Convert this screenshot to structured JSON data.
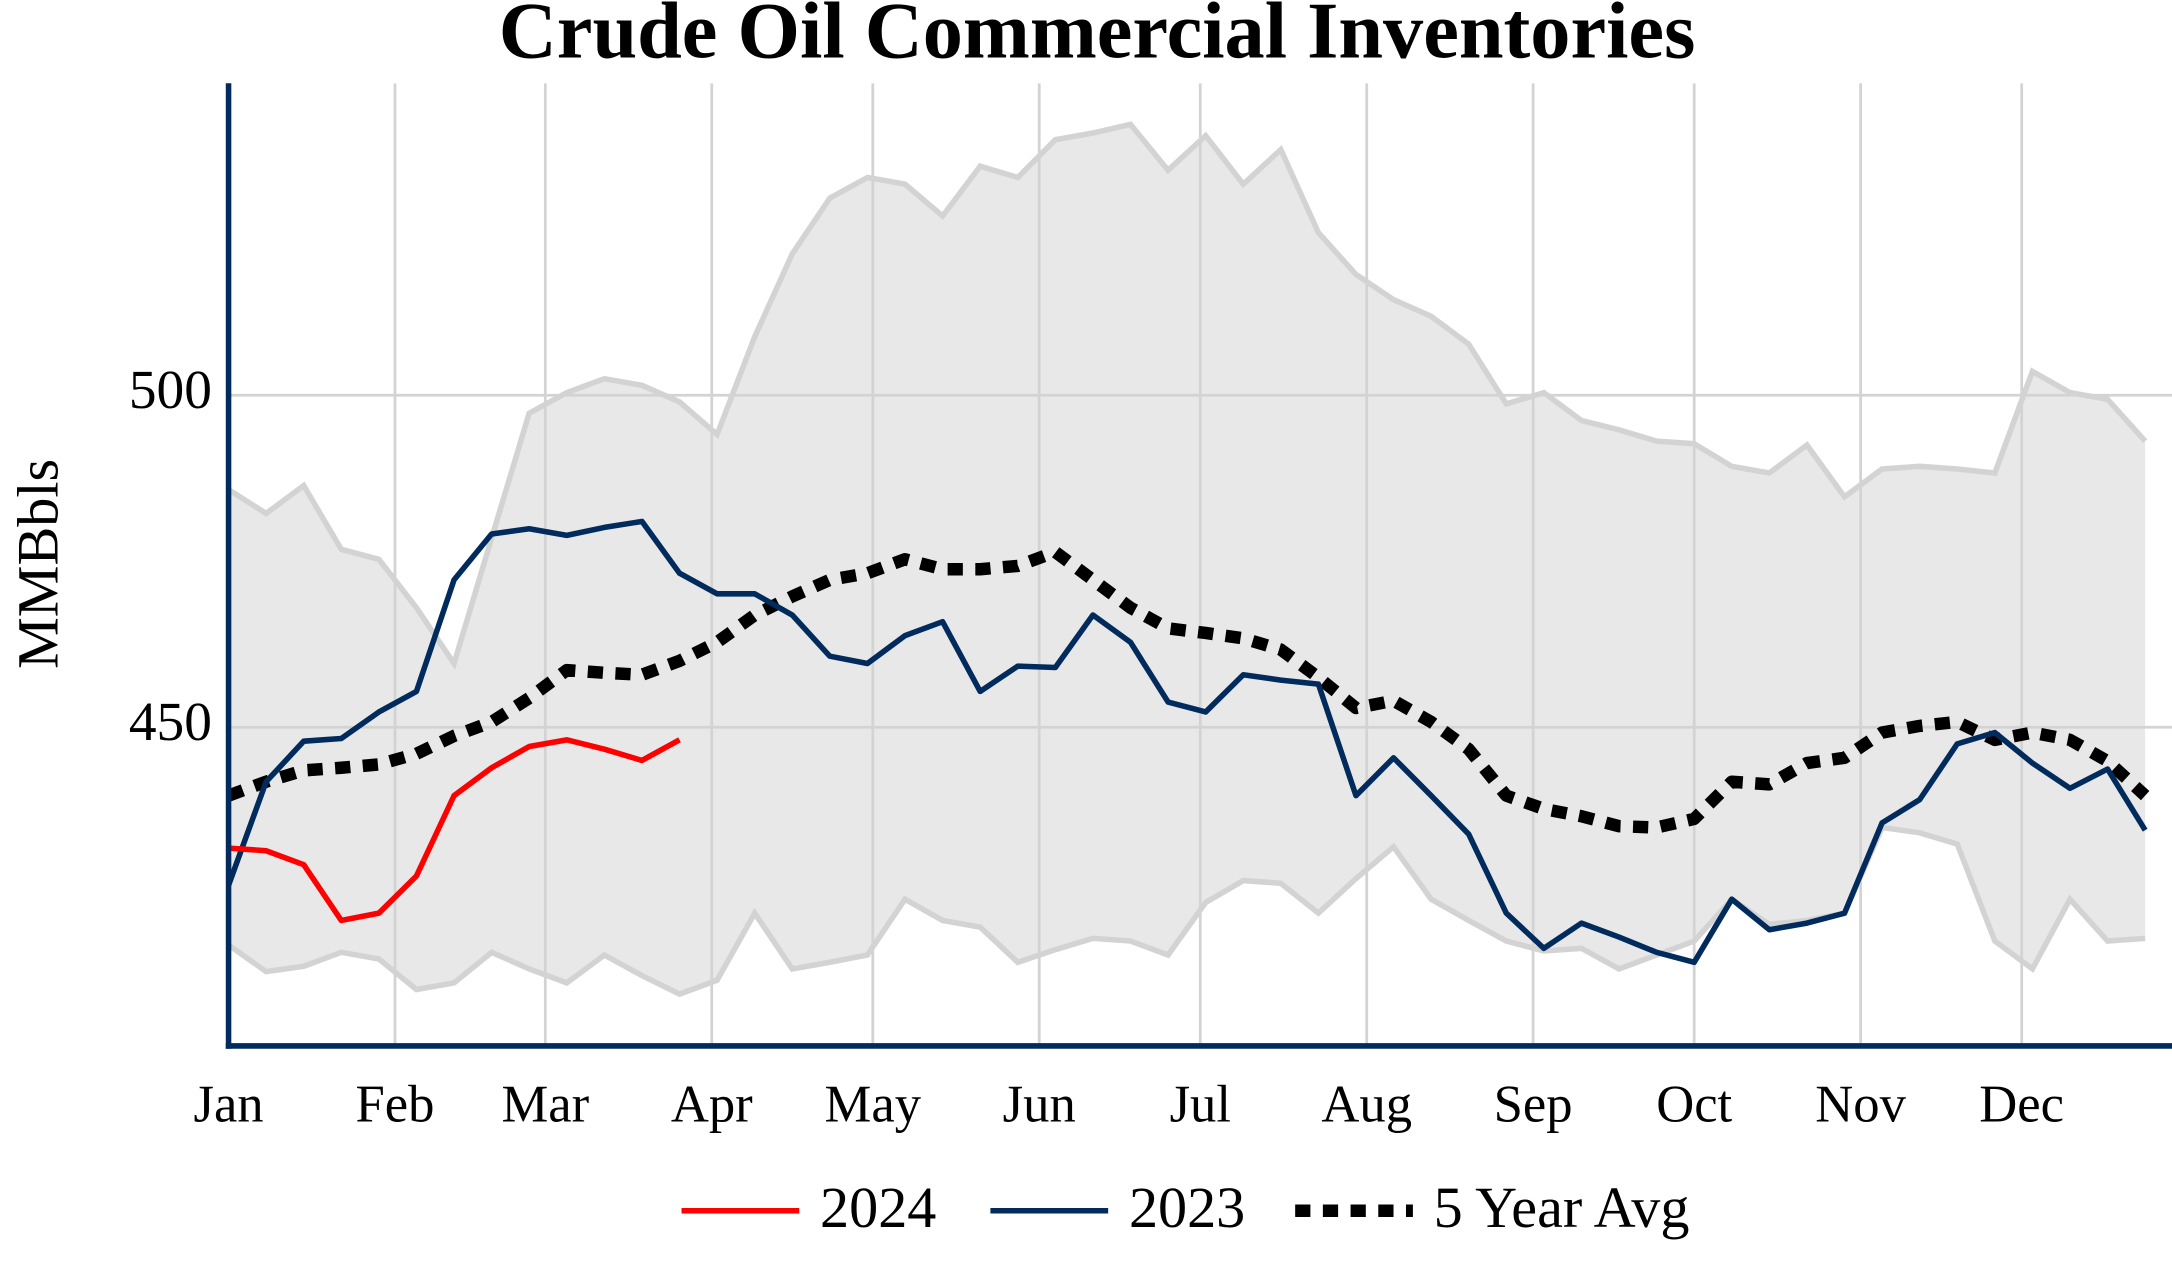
{
  "chart_data": {
    "type": "line",
    "title": "Crude Oil Commercial Inventories",
    "ylabel": "MMBbls",
    "x": [
      1,
      8,
      15,
      22,
      29,
      36,
      43,
      50,
      57,
      64,
      71,
      78,
      85,
      92,
      99,
      106,
      113,
      120,
      127,
      134,
      141,
      148,
      155,
      162,
      169,
      176,
      183,
      190,
      197,
      204,
      211,
      218,
      225,
      232,
      239,
      246,
      253,
      260,
      267,
      274,
      281,
      288,
      295,
      302,
      309,
      316,
      323,
      330,
      337,
      344,
      351,
      358
    ],
    "xlim": [
      1,
      363
    ],
    "xticks": [
      {
        "value": 1,
        "label": "Jan"
      },
      {
        "value": 32,
        "label": "Feb"
      },
      {
        "value": 60,
        "label": "Mar"
      },
      {
        "value": 91,
        "label": "Apr"
      },
      {
        "value": 121,
        "label": "May"
      },
      {
        "value": 152,
        "label": "Jun"
      },
      {
        "value": 182,
        "label": "Jul"
      },
      {
        "value": 213,
        "label": "Aug"
      },
      {
        "value": 244,
        "label": "Sep"
      },
      {
        "value": 274,
        "label": "Oct"
      },
      {
        "value": 305,
        "label": "Nov"
      },
      {
        "value": 335,
        "label": "Dec"
      }
    ],
    "ylim": [
      402,
      547
    ],
    "yticks": [
      450,
      500
    ],
    "grid": true,
    "legend": "bottom",
    "range": {
      "color": "#e8e8e8",
      "edge_color": "#d3d3d3",
      "low": [
        417.2,
        413.2,
        414,
        416.1,
        415.1,
        410.5,
        411.5,
        416.1,
        413.6,
        411.5,
        415.7,
        412.6,
        409.8,
        411.9,
        422,
        413.6,
        414.6,
        415.7,
        424.1,
        420.9,
        419.9,
        414.6,
        416.5,
        418.2,
        417.8,
        415.7,
        423.6,
        426.9,
        426.5,
        422,
        427.2,
        432,
        424.1,
        420.9,
        417.8,
        416.3,
        416.7,
        413.6,
        415.7,
        417.8,
        424.1,
        420.3,
        420.9,
        422,
        434.9,
        434.1,
        432.4,
        417.8,
        413.6,
        424.1,
        417.8,
        418.2
      ],
      "high": [
        485.8,
        482.2,
        486.4,
        476.8,
        475.3,
        468,
        459.6,
        478.5,
        497.3,
        500.4,
        502.5,
        501.5,
        499,
        494.1,
        508.8,
        521.3,
        529.7,
        532.8,
        531.8,
        527,
        534.5,
        532.8,
        538.5,
        539.5,
        540.8,
        533.9,
        539.1,
        531.8,
        537,
        524.5,
        518.2,
        514.4,
        511.9,
        507.7,
        498.7,
        500.4,
        496.2,
        494.8,
        493.1,
        492.7,
        489.3,
        488.3,
        492.5,
        484.7,
        488.9,
        489.3,
        488.9,
        488.3,
        503.6,
        500.4,
        499.4,
        493.1
      ]
    },
    "series": [
      {
        "name": "2024",
        "color": "#ff0000",
        "dash": "solid",
        "values": [
          431.8,
          431.4,
          429.3,
          420.9,
          422,
          427.6,
          439.7,
          443.9,
          447.1,
          448.1,
          446.7,
          445,
          448.1,
          null,
          null,
          null,
          null,
          null,
          null,
          null,
          null,
          null,
          null,
          null,
          null,
          null,
          null,
          null,
          null,
          null,
          null,
          null,
          null,
          null,
          null,
          null,
          null,
          null,
          null,
          null,
          null,
          null,
          null,
          null,
          null,
          null,
          null,
          null,
          null,
          null,
          null,
          null
        ]
      },
      {
        "name": "2023",
        "color": "#002b5c",
        "dash": "solid",
        "values": [
          426.2,
          441.8,
          447.9,
          448.3,
          452.3,
          455.4,
          472.2,
          479.1,
          479.9,
          478.9,
          480.1,
          481,
          473.2,
          470.1,
          470.1,
          466.9,
          460.7,
          459.6,
          463.8,
          465.9,
          455.4,
          459.2,
          459,
          466.9,
          462.8,
          453.8,
          452.3,
          457.9,
          457.1,
          456.5,
          439.7,
          445.4,
          439.7,
          433.9,
          422,
          416.7,
          420.5,
          418.4,
          416.1,
          414.6,
          424.1,
          419.5,
          420.5,
          422,
          435.6,
          439.1,
          447.5,
          449.2,
          444.6,
          440.8,
          443.7,
          434.5
        ]
      },
      {
        "name": "5 Year Avg",
        "color": "#000000",
        "dash": "dotted",
        "values": [
          439.7,
          441.8,
          443.5,
          443.9,
          444.4,
          446,
          448.7,
          450.8,
          454.4,
          458.6,
          458.2,
          457.9,
          460,
          462.8,
          466.9,
          469.7,
          472.2,
          473.2,
          475.3,
          473.8,
          473.8,
          474.3,
          476.4,
          472.2,
          468,
          464.9,
          464.2,
          463.4,
          461.7,
          457.5,
          452.9,
          454,
          450.8,
          446.7,
          439.7,
          437.7,
          436.6,
          435.1,
          434.9,
          436.2,
          441.8,
          441.4,
          444.6,
          445.4,
          449.2,
          450.2,
          450.8,
          448.1,
          449.2,
          448.1,
          444.9,
          439.7
        ]
      }
    ]
  }
}
